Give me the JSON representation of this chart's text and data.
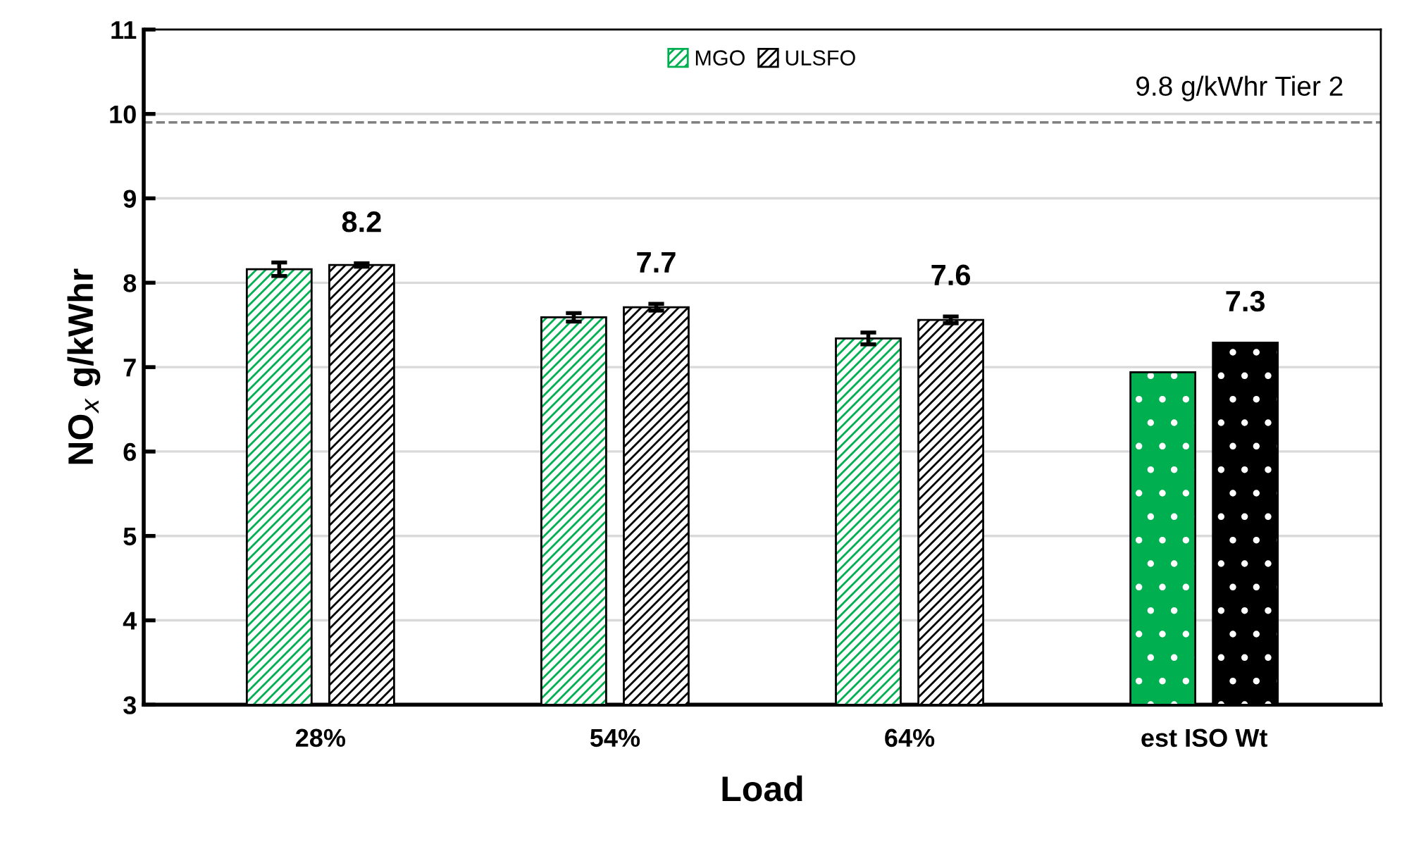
{
  "chart_data": {
    "type": "bar",
    "categories": [
      "28%",
      "54%",
      "64%",
      "est ISO Wt"
    ],
    "series": [
      {
        "name": "MGO",
        "color": "#00b050",
        "values": [
          8.16,
          7.59,
          7.34,
          6.94
        ],
        "errors": [
          0.08,
          0.05,
          0.07,
          null
        ]
      },
      {
        "name": "ULSFO",
        "color": "#000000",
        "values": [
          8.21,
          7.71,
          7.56,
          7.29
        ],
        "errors": [
          0.02,
          0.04,
          0.04,
          null
        ],
        "value_labels": [
          "8.2",
          "7.7",
          "7.6",
          "7.3"
        ]
      }
    ],
    "xlabel": "Load",
    "ylabel": "NO$_{x}$ g/kWhr",
    "ylim": [
      3,
      11
    ],
    "yticks": [
      3,
      4,
      5,
      6,
      7,
      8,
      9,
      10,
      11
    ],
    "ref_lines": [
      {
        "axis": "y",
        "value": 9.9,
        "label": "9.8 g/kWhr Tier 2",
        "color": "#808080",
        "line_style": "dashed"
      }
    ],
    "grid": "y",
    "legend": "top"
  }
}
